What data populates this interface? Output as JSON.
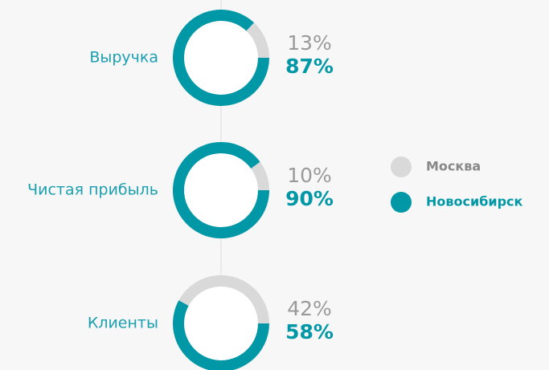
{
  "chart_data": {
    "type": "donut",
    "categories": [
      "Выручка",
      "Чистая прибыль",
      "Клиенты"
    ],
    "series": [
      {
        "name": "Москва",
        "color": "#d9d9d9",
        "values": [
          13,
          10,
          42
        ],
        "value_labels": [
          "13%",
          "10%",
          "42%"
        ]
      },
      {
        "name": "Новосибирск",
        "color": "#0097a7",
        "values": [
          87,
          90,
          58
        ],
        "value_labels": [
          "87%",
          "90%",
          "58%"
        ]
      }
    ]
  }
}
